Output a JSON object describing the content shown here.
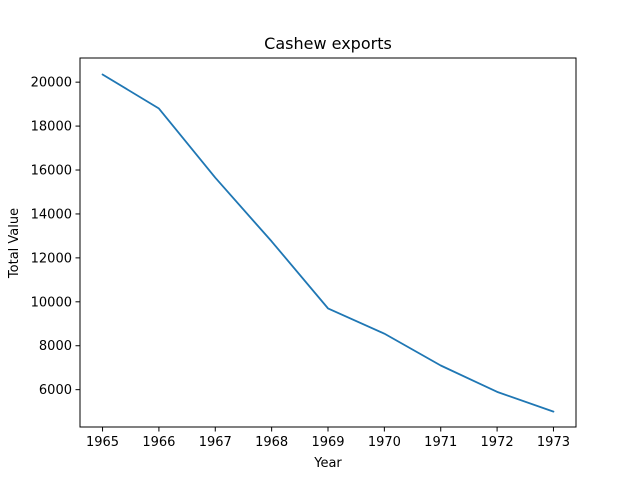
{
  "chart_data": {
    "type": "line",
    "title": "Cashew exports",
    "xlabel": "Year",
    "ylabel": "Total Value",
    "x": [
      1965,
      1966,
      1967,
      1968,
      1969,
      1970,
      1971,
      1972,
      1973
    ],
    "series": [
      {
        "values": [
          20350,
          18800,
          15650,
          12750,
          9700,
          8550,
          7100,
          5900,
          5000
        ],
        "color": "#1f77b4"
      }
    ],
    "xlim": [
      1964.6,
      1973.4
    ],
    "ylim": [
      4300,
      21100
    ],
    "xticks": [
      "1965",
      "1966",
      "1967",
      "1968",
      "1969",
      "1970",
      "1971",
      "1972",
      "1973"
    ],
    "yticks": [
      "6000",
      "8000",
      "10000",
      "12000",
      "14000",
      "16000",
      "18000",
      "20000"
    ],
    "grid": false,
    "legend": "none"
  }
}
